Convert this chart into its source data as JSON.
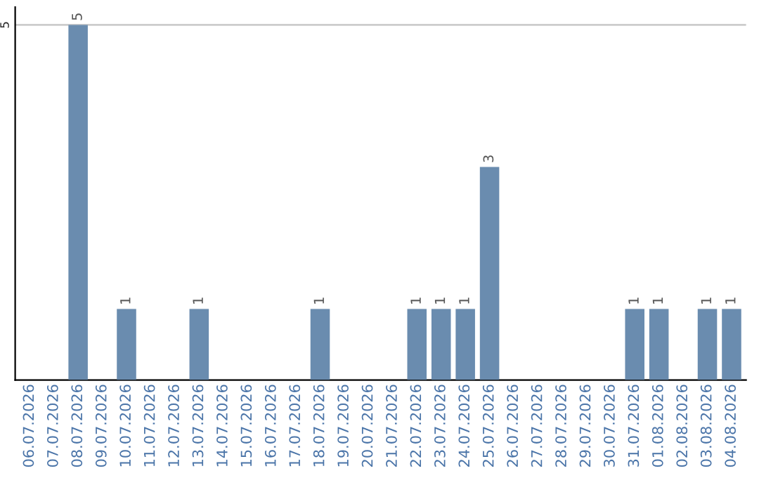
{
  "chart_data": {
    "type": "bar",
    "categories": [
      "06.07.2026",
      "07.07.2026",
      "08.07.2026",
      "09.07.2026",
      "10.07.2026",
      "11.07.2026",
      "12.07.2026",
      "13.07.2026",
      "14.07.2026",
      "15.07.2026",
      "16.07.2026",
      "17.07.2026",
      "18.07.2026",
      "19.07.2026",
      "20.07.2026",
      "21.07.2026",
      "22.07.2026",
      "23.07.2026",
      "24.07.2026",
      "25.07.2026",
      "26.07.2026",
      "27.07.2026",
      "28.07.2026",
      "29.07.2026",
      "30.07.2026",
      "31.07.2026",
      "01.08.2026",
      "02.08.2026",
      "03.08.2026",
      "04.08.2026"
    ],
    "values": [
      0,
      0,
      5,
      0,
      1,
      0,
      0,
      1,
      0,
      0,
      0,
      0,
      1,
      0,
      0,
      0,
      1,
      1,
      1,
      3,
      0,
      0,
      0,
      0,
      0,
      1,
      1,
      0,
      1,
      1
    ],
    "value_labels": [
      null,
      null,
      "5",
      null,
      "1",
      null,
      null,
      "1",
      null,
      null,
      null,
      null,
      "1",
      null,
      null,
      null,
      "1",
      "1",
      "1",
      "3",
      null,
      null,
      null,
      null,
      null,
      "1",
      "1",
      null,
      "1",
      "1"
    ],
    "color": "#6a8caf",
    "ylim": [
      0,
      5.25
    ],
    "yticks": [
      5
    ],
    "grid": "y"
  }
}
